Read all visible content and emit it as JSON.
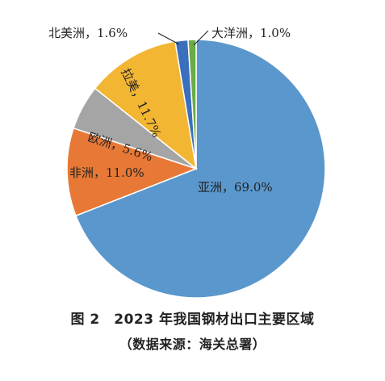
{
  "chart_data": {
    "type": "pie",
    "start": "12 o'clock",
    "direction": "clockwise",
    "slices": [
      {
        "name": "亚洲",
        "value": 69.0,
        "label": "亚洲，69.0%",
        "color": "#5a97cc"
      },
      {
        "name": "非洲",
        "value": 11.0,
        "label": "非洲，11.0%",
        "color": "#e77836"
      },
      {
        "name": "欧洲",
        "value": 5.6,
        "label": "欧洲，5.6%",
        "color": "#a5a5a5"
      },
      {
        "name": "拉美",
        "value": 11.7,
        "label": "拉美，11.7%",
        "color": "#f2b632"
      },
      {
        "name": "北美洲",
        "value": 1.6,
        "label": "北美洲，1.6%",
        "color": "#3a6fbd"
      },
      {
        "name": "大洋洲",
        "value": 1.0,
        "label": "大洋洲，1.0%",
        "color": "#6bab47"
      }
    ]
  },
  "caption": {
    "title": "图 2　2023 年我国钢材出口主要区域",
    "source": "（数据来源：海关总署）"
  }
}
